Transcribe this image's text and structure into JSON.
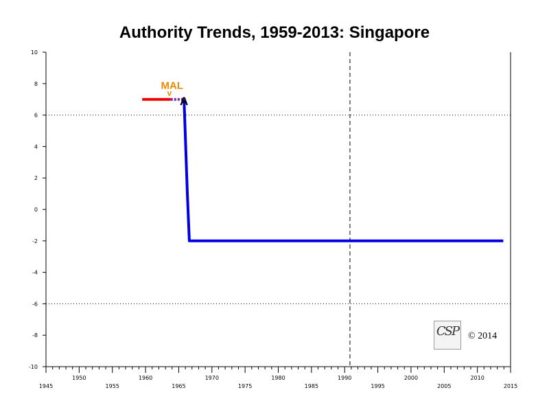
{
  "chart_data": {
    "type": "line",
    "title": "Authority Trends, 1959-2013: Singapore",
    "xlim": [
      1945,
      2015
    ],
    "ylim": [
      -10,
      10
    ],
    "x_ticks_low": [
      "1945",
      "1955",
      "1965",
      "1975",
      "1985",
      "1995",
      "2005",
      "2015"
    ],
    "x_ticks_high": [
      "1950",
      "1960",
      "1970",
      "1980",
      "1990",
      "2000",
      "2010"
    ],
    "y_ticks": [
      "10",
      "8",
      "6",
      "4",
      "2",
      "0",
      "-2",
      "-4",
      "-6",
      "-8",
      "-10"
    ],
    "reference_lines": [
      {
        "axis": "y",
        "value": 6,
        "style": "dotted"
      },
      {
        "axis": "y",
        "value": -6,
        "style": "dotted"
      },
      {
        "axis": "x",
        "value": 1990.8,
        "style": "dashed"
      }
    ],
    "series": [
      {
        "color": "#ee0000",
        "points": [
          [
            1959.5,
            7
          ],
          [
            1963.8,
            7
          ]
        ]
      },
      {
        "color": "#7a2aa8",
        "points": [
          [
            1963.8,
            7
          ],
          [
            1965.8,
            7
          ]
        ]
      },
      {
        "color": "#0000e0",
        "points": [
          [
            1965.8,
            7
          ],
          [
            1966.3,
            1
          ],
          [
            1966.6,
            -2
          ],
          [
            2013.9,
            -2
          ]
        ]
      }
    ],
    "annotations": [
      {
        "text": "MAL",
        "x": 1964,
        "y": 7.9,
        "color": "#ee8800"
      },
      {
        "text": "v",
        "x": 1963.6,
        "y": 7.4,
        "color": "#ee8800"
      },
      {
        "text": "A",
        "x": 1965.8,
        "y": 6.9,
        "color": "#000000"
      }
    ]
  },
  "logo": {
    "text": "CSP"
  },
  "copyright": "© 2014",
  "colors": {
    "axis": "#000000",
    "background": "#ffffff"
  }
}
